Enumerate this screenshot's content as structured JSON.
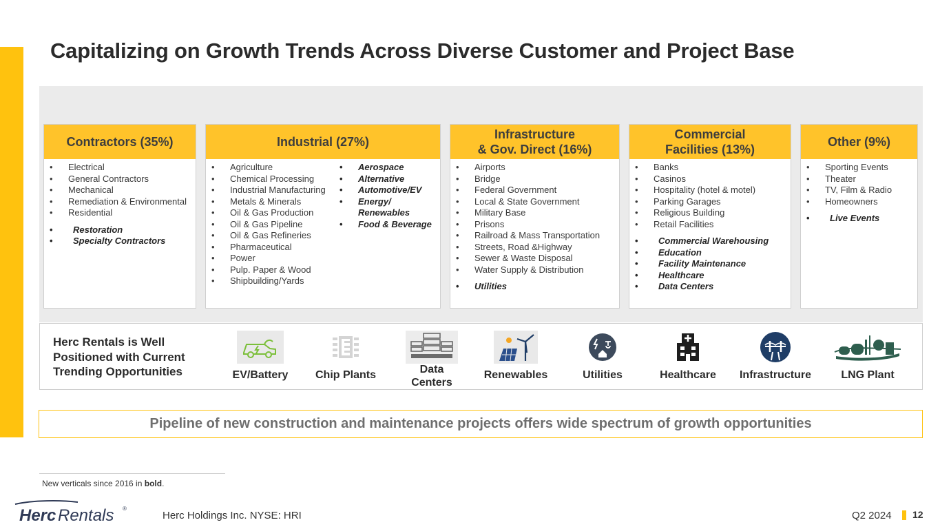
{
  "title": "Capitalizing on Growth Trends Across Diverse Customer and Project Base",
  "segments": [
    {
      "title": "Contractors (35%)",
      "col1": [
        "Electrical",
        "General Contractors",
        "Mechanical",
        "Remediation & Environmental",
        "Residential"
      ],
      "new1": [
        "Restoration",
        "Specialty Contractors"
      ]
    },
    {
      "title": "Industrial (27%)",
      "col1": [
        "Agriculture",
        "Chemical Processing",
        "Industrial Manufacturing",
        "Metals & Minerals",
        "Oil & Gas Production",
        "Oil & Gas Pipeline",
        "Oil & Gas Refineries",
        "Pharmaceutical",
        "Power",
        "Pulp. Paper & Wood",
        "Shipbuilding/Yards"
      ],
      "new2": [
        "Aerospace",
        "Alternative",
        "Automotive/EV",
        "Energy/ Renewables",
        "Food & Beverage"
      ]
    },
    {
      "title_line1": "Infrastructure",
      "title_line2": "& Gov. Direct (16%)",
      "col1": [
        "Airports",
        "Bridge",
        "Federal Government",
        "Local & State Government",
        "Military Base",
        "Prisons",
        "Railroad & Mass Transportation",
        "Streets, Road &Highway",
        "Sewer & Waste Disposal",
        "Water Supply & Distribution"
      ],
      "new1": [
        "Utilities"
      ]
    },
    {
      "title_line1": "Commercial",
      "title_line2": "Facilities (13%)",
      "col1": [
        "Banks",
        "Casinos",
        "Hospitality (hotel & motel)",
        "Parking Garages",
        "Religious Building",
        "Retail Facilities"
      ],
      "new1": [
        "Commercial Warehousing",
        "Education",
        "Facility Maintenance",
        "Healthcare",
        "Data Centers"
      ]
    },
    {
      "title": "Other (9%)",
      "col1": [
        "Sporting Events",
        "Theater",
        "TV, Film & Radio",
        "Homeowners"
      ],
      "new1": [
        "Live Events"
      ]
    }
  ],
  "bullet": "•",
  "opportunities": {
    "title": "Herc Rentals is Well Positioned with Current Trending Opportunities",
    "items": [
      {
        "label": "EV/Battery",
        "icon": "ev-battery-icon"
      },
      {
        "label": "Chip Plants",
        "icon": "chip-icon"
      },
      {
        "label_line1": "Data",
        "label_line2": "Centers",
        "icon": "server-icon"
      },
      {
        "label": "Renewables",
        "icon": "solar-wind-icon"
      },
      {
        "label": "Utilities",
        "icon": "utilities-icon"
      },
      {
        "label": "Healthcare",
        "icon": "hospital-icon"
      },
      {
        "label": "Infrastructure",
        "icon": "bridge-icon"
      },
      {
        "label": "LNG Plant",
        "icon": "lng-plant-icon"
      }
    ]
  },
  "pipeline": "Pipeline of new construction and maintenance projects offers wide spectrum of growth opportunities",
  "footnote": {
    "text": "New verticals since 2016 in ",
    "bold": "bold",
    "end": "."
  },
  "footer": {
    "logo_a": "Herc",
    "logo_b": "Rentals",
    "logo_reg": "®",
    "company": "Herc Holdings Inc.  NYSE: HRI",
    "quarter": "Q2 2024",
    "page": "12"
  },
  "colors": {
    "accent": "#FFC20E",
    "header": "#FFC32A",
    "panel": "#EBEBEB",
    "icon_navy": "#1F3D66"
  }
}
